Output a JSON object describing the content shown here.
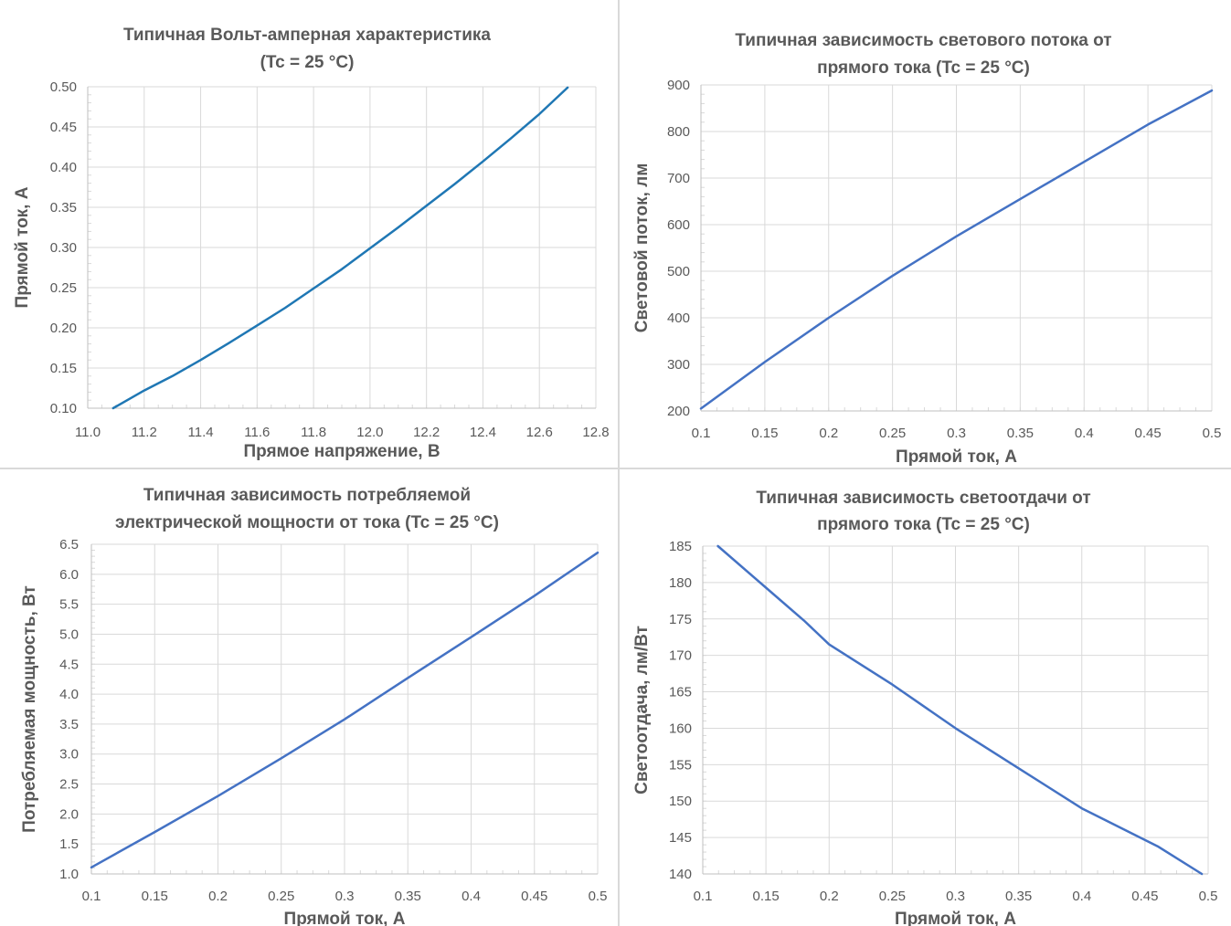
{
  "chart_data": [
    {
      "type": "line",
      "title": [
        "Типичная Вольт-амперная характеристика",
        "(Tc = 25 °C)"
      ],
      "xlabel": "Прямое напряжение, В",
      "ylabel": "Прямой ток, А",
      "xlim": [
        11.0,
        12.8
      ],
      "ylim": [
        0.1,
        0.5
      ],
      "xticks": [
        "11.0",
        "11.2",
        "11.4",
        "11.6",
        "11.8",
        "12.0",
        "12.2",
        "12.4",
        "12.6",
        "12.8"
      ],
      "yticks": [
        "0.10",
        "0.15",
        "0.20",
        "0.25",
        "0.30",
        "0.35",
        "0.40",
        "0.45",
        "0.50"
      ],
      "grid": true,
      "series": [
        {
          "color": "#1f77b4",
          "x": [
            11.09,
            11.15,
            11.2,
            11.3,
            11.4,
            11.5,
            11.6,
            11.7,
            11.8,
            11.9,
            12.0,
            12.1,
            12.2,
            12.3,
            12.4,
            12.5,
            12.6,
            12.7
          ],
          "y": [
            0.1,
            0.112,
            0.122,
            0.14,
            0.16,
            0.181,
            0.203,
            0.225,
            0.249,
            0.273,
            0.299,
            0.325,
            0.352,
            0.379,
            0.407,
            0.436,
            0.466,
            0.499
          ]
        }
      ]
    },
    {
      "type": "line",
      "title": [
        "Типичная зависимость светового потока от",
        "прямого тока  (Tc = 25 °C)"
      ],
      "xlabel": "Прямой ток, А",
      "ylabel": "Световой поток, лм",
      "xlim": [
        0.1,
        0.5
      ],
      "ylim": [
        200,
        900
      ],
      "xticks": [
        "0.1",
        "0.15",
        "0.2",
        "0.25",
        "0.3",
        "0.35",
        "0.4",
        "0.45",
        "0.5"
      ],
      "yticks": [
        "200",
        "300",
        "400",
        "500",
        "600",
        "700",
        "800",
        "900"
      ],
      "grid": true,
      "series": [
        {
          "color": "#4472c4",
          "x": [
            0.1,
            0.15,
            0.2,
            0.25,
            0.3,
            0.35,
            0.4,
            0.45,
            0.5
          ],
          "y": [
            205,
            305,
            400,
            490,
            575,
            655,
            735,
            815,
            888
          ]
        }
      ]
    },
    {
      "type": "line",
      "title": [
        "Типичная зависимость потребляемой",
        "электрической мощности от тока (Tc = 25 °C)"
      ],
      "xlabel": "Прямой ток, А",
      "ylabel": "Потребляемая мощность, Вт",
      "xlim": [
        0.1,
        0.5
      ],
      "ylim": [
        1.0,
        6.5
      ],
      "xticks": [
        "0.1",
        "0.15",
        "0.2",
        "0.25",
        "0.3",
        "0.35",
        "0.4",
        "0.45",
        "0.5"
      ],
      "yticks": [
        "1.0",
        "1.5",
        "2.0",
        "2.5",
        "3.0",
        "3.5",
        "4.0",
        "4.5",
        "5.0",
        "5.5",
        "6.0",
        "6.5"
      ],
      "grid": true,
      "series": [
        {
          "color": "#4472c4",
          "x": [
            0.1,
            0.15,
            0.2,
            0.25,
            0.3,
            0.35,
            0.4,
            0.45,
            0.5
          ],
          "y": [
            1.11,
            1.7,
            2.3,
            2.93,
            3.58,
            4.27,
            4.95,
            5.64,
            6.36
          ]
        }
      ]
    },
    {
      "type": "line",
      "title": [
        "Типичная зависимость светоотдачи от",
        "прямого тока (Tc = 25 °C)"
      ],
      "xlabel": "Прямой ток, А",
      "ylabel": "Светоотдача, лм/Вт",
      "xlim": [
        0.1,
        0.5
      ],
      "ylim": [
        140,
        185
      ],
      "xticks": [
        "0.1",
        "0.15",
        "0.2",
        "0.25",
        "0.3",
        "0.35",
        "0.4",
        "0.45",
        "0.5"
      ],
      "yticks": [
        "140",
        "145",
        "150",
        "155",
        "160",
        "165",
        "170",
        "175",
        "180",
        "185"
      ],
      "grid": true,
      "series": [
        {
          "color": "#4472c4",
          "x": [
            0.112,
            0.15,
            0.18,
            0.2,
            0.25,
            0.3,
            0.35,
            0.4,
            0.46,
            0.495
          ],
          "y": [
            185,
            179.3,
            174.8,
            171.5,
            166,
            160,
            154.5,
            149,
            143.8,
            140
          ]
        }
      ]
    }
  ]
}
